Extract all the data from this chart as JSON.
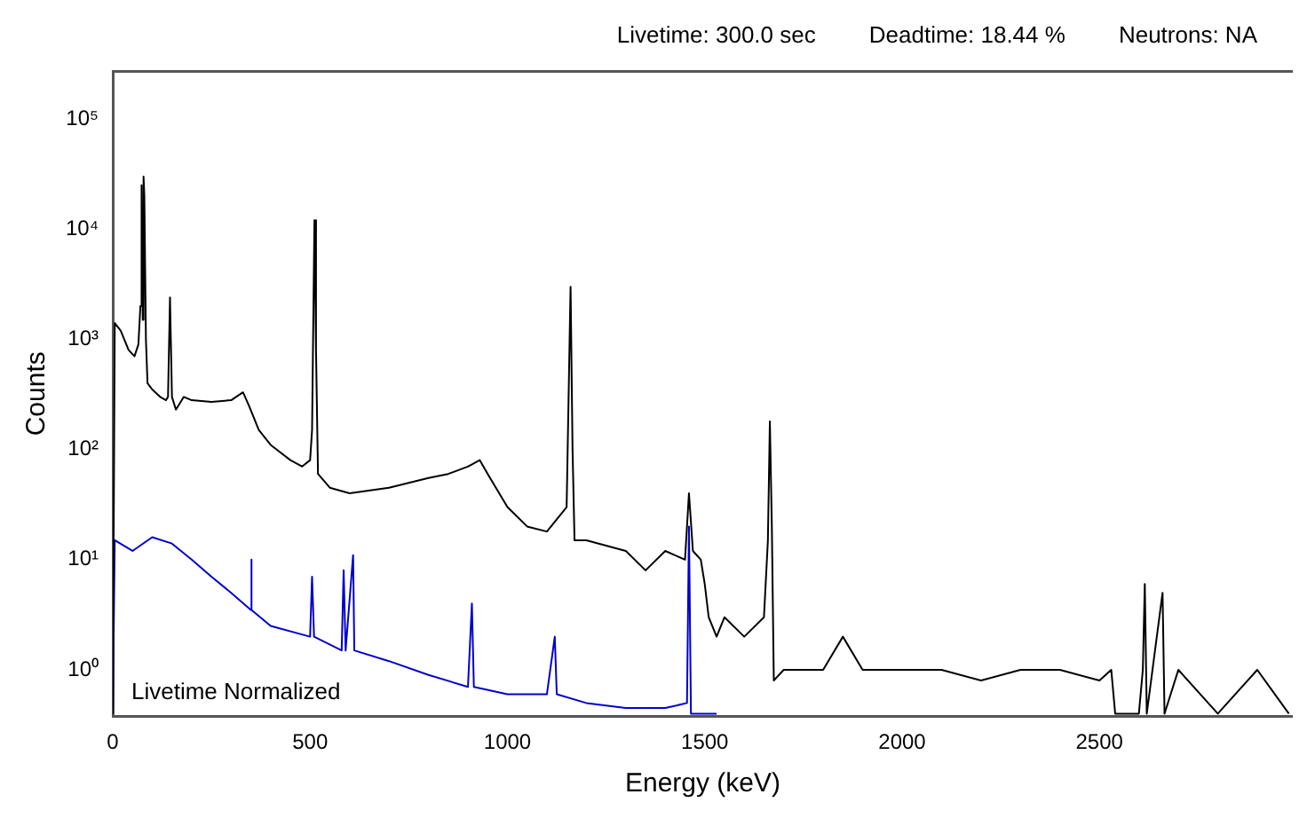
{
  "chart_data": {
    "type": "line",
    "xlabel": "Energy (keV)",
    "ylabel": "Counts",
    "log": "y",
    "xlim": [
      0,
      2990
    ],
    "xticks": [
      0,
      500,
      1000,
      1500,
      2000,
      2500
    ],
    "ylim": [
      0.38,
      270000
    ],
    "yticks": [
      {
        "value": 1,
        "label": "10⁰"
      },
      {
        "value": 10,
        "label": "10¹"
      },
      {
        "value": 100,
        "label": "10²"
      },
      {
        "value": 1000,
        "label": "10³"
      },
      {
        "value": 10000,
        "label": "10⁴"
      },
      {
        "value": 100000,
        "label": "10⁵"
      }
    ],
    "grid": false,
    "legend": false,
    "marker": "none",
    "line_style": "solid",
    "annotations": [
      "Livetime: 300.0 sec",
      "Deadtime: 18.44 %",
      "Neutrons: NA",
      "Livetime Normalized"
    ],
    "series": [
      {
        "color": "#000000",
        "x": [
          0,
          5,
          20,
          40,
          55,
          65,
          70,
          73,
          76,
          78,
          80,
          84,
          88,
          100,
          120,
          135,
          140,
          145,
          150,
          160,
          180,
          200,
          250,
          300,
          330,
          345,
          370,
          400,
          450,
          480,
          500,
          505,
          511,
          515,
          520,
          550,
          600,
          700,
          800,
          850,
          900,
          930,
          950,
          1000,
          1050,
          1100,
          1150,
          1160,
          1165,
          1170,
          1200,
          1300,
          1350,
          1400,
          1450,
          1460,
          1470,
          1490,
          1500,
          1510,
          1530,
          1550,
          1600,
          1650,
          1660,
          1665,
          1670,
          1675,
          1700,
          1800,
          1850,
          1900,
          2000,
          2100,
          2200,
          2300,
          2400,
          2500,
          2530,
          2540,
          2600,
          2610,
          2615,
          2620,
          2660,
          2665,
          2700,
          2800,
          2900,
          2980
        ],
        "values": [
          0.4,
          1400,
          1200,
          800,
          700,
          900,
          2000,
          25000,
          1500,
          30000,
          20000,
          1000,
          400,
          350,
          300,
          280,
          300,
          2400,
          300,
          230,
          300,
          280,
          270,
          280,
          330,
          250,
          150,
          110,
          80,
          70,
          80,
          150,
          12000,
          800,
          60,
          45,
          40,
          45,
          55,
          60,
          70,
          80,
          60,
          30,
          20,
          18,
          30,
          3000,
          100,
          15,
          15,
          12,
          8,
          12,
          10,
          40,
          12,
          10,
          6,
          3,
          2,
          3,
          2,
          3,
          15,
          180,
          20,
          0.8,
          1,
          1,
          2,
          1,
          1,
          1,
          0.8,
          1,
          1,
          0.8,
          1,
          0.4,
          0.4,
          1,
          6,
          0.4,
          5,
          0.4,
          1,
          0.4,
          1,
          0.4
        ]
      },
      {
        "color": "#0000cc",
        "x": [
          0,
          5,
          50,
          100,
          150,
          200,
          250,
          300,
          350,
          351,
          352,
          400,
          500,
          505,
          510,
          580,
          585,
          590,
          609,
          612,
          700,
          800,
          900,
          910,
          915,
          1000,
          1100,
          1120,
          1125,
          1200,
          1300,
          1400,
          1455,
          1460,
          1465,
          1500,
          1530
        ],
        "values": [
          0.4,
          15,
          12,
          16,
          14,
          10,
          7,
          5,
          3.5,
          10,
          3.5,
          2.5,
          2,
          7,
          2,
          1.5,
          8,
          1.5,
          11,
          1.5,
          1.2,
          0.9,
          0.7,
          4,
          0.7,
          0.6,
          0.6,
          2,
          0.6,
          0.5,
          0.45,
          0.45,
          0.5,
          20,
          0.4,
          0.4,
          0.4
        ]
      }
    ]
  }
}
